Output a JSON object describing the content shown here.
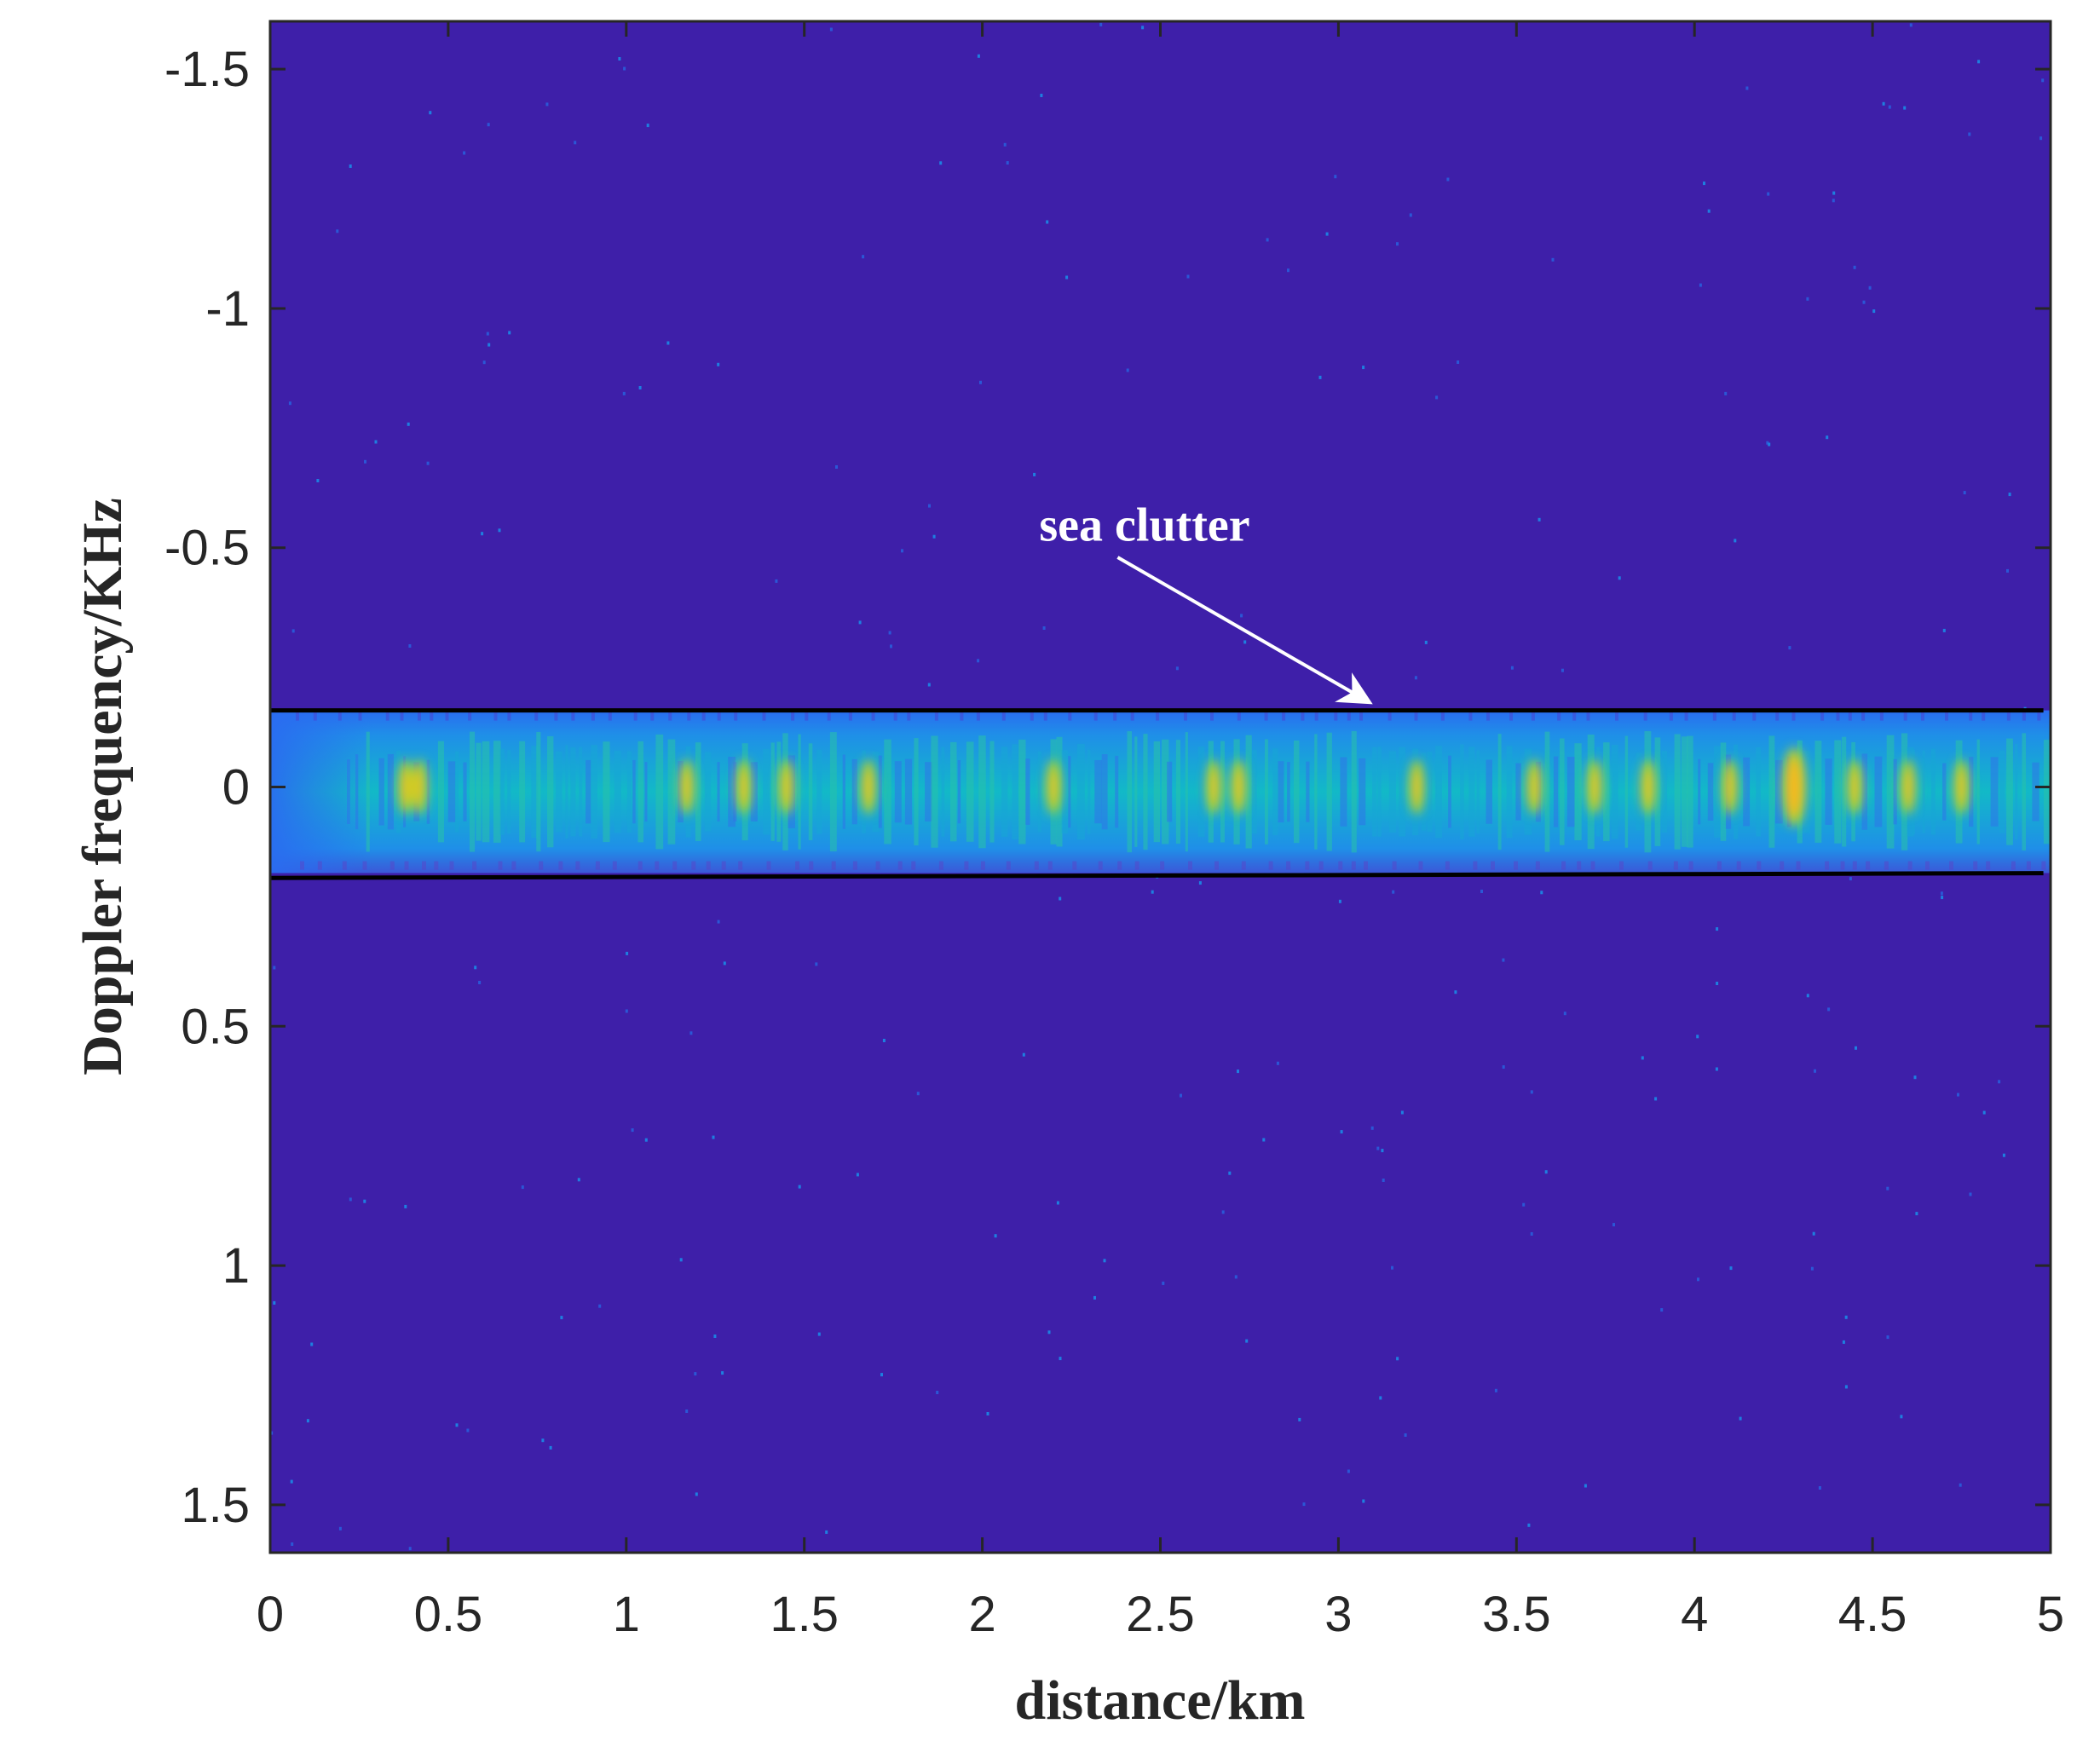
{
  "chart_data": {
    "type": "heatmap",
    "xlabel": "distance/km",
    "ylabel": "Doppler frequency/KHz",
    "xlim": [
      0,
      5
    ],
    "ylim": [
      -1.6,
      1.6
    ],
    "y_axis_direction": "reversed (negative values at top)",
    "x_ticks": [
      0,
      0.5,
      1,
      1.5,
      2,
      2.5,
      3,
      3.5,
      4,
      4.5,
      5
    ],
    "x_tick_labels": [
      "0",
      "0.5",
      "1",
      "1.5",
      "2",
      "2.5",
      "3",
      "3.5",
      "4",
      "4.5",
      "5"
    ],
    "y_ticks": [
      -1.5,
      -1,
      -0.5,
      0,
      0.5,
      1,
      1.5
    ],
    "y_tick_labels": [
      "-1.5",
      "-1",
      "-0.5",
      "0",
      "0.5",
      "1",
      "1.5"
    ],
    "colormap": "parula",
    "background_color": "#3e1fa9",
    "clutter_band": {
      "y_min": -0.16,
      "y_max": 0.18,
      "x_min": 0,
      "x_max": 5
    },
    "boundary_lines": [
      {
        "y_start": -0.16,
        "y_end": -0.16,
        "x_start": 0,
        "x_end": 4.98,
        "color": "#000000"
      },
      {
        "y_start": 0.19,
        "y_end": 0.18,
        "x_start": 0,
        "x_end": 4.98,
        "color": "#000000"
      }
    ],
    "hotspots_km": [
      0.38,
      0.42,
      1.17,
      1.33,
      1.45,
      1.68,
      2.2,
      2.65,
      2.72,
      3.22,
      3.55,
      3.72,
      3.87,
      4.1,
      4.28,
      4.45,
      4.6,
      4.75
    ],
    "peak_hotspot_km": 4.28,
    "annotation": {
      "text": "sea clutter",
      "label_x": 2.16,
      "label_y": -0.55,
      "arrow_from": [
        2.38,
        -0.48
      ],
      "arrow_to": [
        3.08,
        -0.18
      ]
    }
  }
}
